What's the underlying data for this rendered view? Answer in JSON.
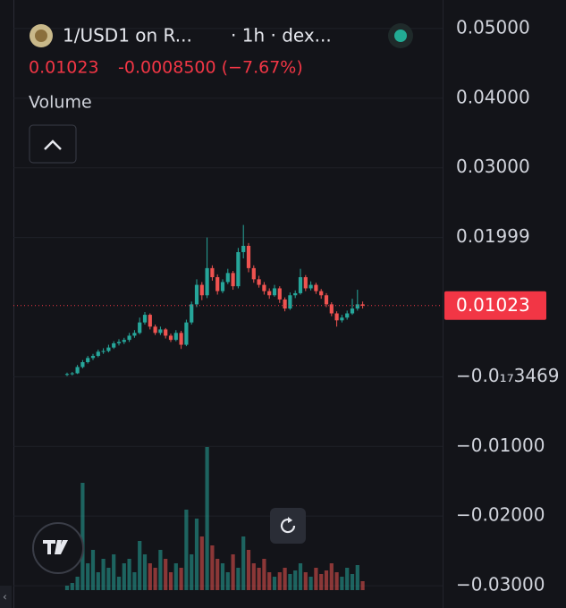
{
  "chart_data": {
    "type": "candlestick",
    "title": "1/USD1 on R...",
    "subtitle": "· 1h · dex...",
    "last_price": "0.01023",
    "change": "-0.0008500 (−7.67%)",
    "volume_label": "Volume",
    "current_price": 0.01023,
    "current_price_label": "0.01023",
    "up_color": "#26a69a",
    "down_color": "#ef5350",
    "ylim": [
      -0.0332,
      0.0541
    ],
    "yticks": [
      {
        "value": 0.05,
        "label": "0.05000"
      },
      {
        "value": 0.04,
        "label": "0.04000"
      },
      {
        "value": 0.03,
        "label": "0.03000"
      },
      {
        "value": 0.02,
        "label": "0.01999"
      },
      {
        "value": -3.469e-18,
        "label": "−0.0₁₇3469"
      },
      {
        "value": -0.01,
        "label": "−0.01000"
      },
      {
        "value": -0.02,
        "label": "−0.02000"
      },
      {
        "value": -0.03,
        "label": "−0.03000"
      }
    ],
    "grid": true,
    "ohlc": [
      [
        0.0003,
        0.0006,
        0.0001,
        0.0004
      ],
      [
        0.0004,
        0.0007,
        0.0002,
        0.0005
      ],
      [
        0.0005,
        0.0017,
        0.0004,
        0.0014
      ],
      [
        0.0014,
        0.0024,
        0.0012,
        0.0021
      ],
      [
        0.0021,
        0.003,
        0.0019,
        0.0027
      ],
      [
        0.0027,
        0.0033,
        0.0024,
        0.003
      ],
      [
        0.003,
        0.0039,
        0.0028,
        0.0036
      ],
      [
        0.0036,
        0.0041,
        0.0033,
        0.0037
      ],
      [
        0.0037,
        0.0046,
        0.0035,
        0.0042
      ],
      [
        0.0042,
        0.0051,
        0.004,
        0.0048
      ],
      [
        0.0048,
        0.0054,
        0.0045,
        0.005
      ],
      [
        0.005,
        0.0056,
        0.0047,
        0.0053
      ],
      [
        0.0053,
        0.0063,
        0.005,
        0.0059
      ],
      [
        0.0059,
        0.0067,
        0.0056,
        0.0063
      ],
      [
        0.0063,
        0.0085,
        0.0061,
        0.0078
      ],
      [
        0.0078,
        0.0093,
        0.0075,
        0.0089
      ],
      [
        0.0089,
        0.0091,
        0.0068,
        0.0072
      ],
      [
        0.0072,
        0.0075,
        0.006,
        0.0063
      ],
      [
        0.0063,
        0.0072,
        0.006,
        0.0068
      ],
      [
        0.0068,
        0.007,
        0.0055,
        0.0059
      ],
      [
        0.0059,
        0.0062,
        0.005,
        0.0053
      ],
      [
        0.0053,
        0.0067,
        0.0051,
        0.0063
      ],
      [
        0.0063,
        0.0066,
        0.004,
        0.0046
      ],
      [
        0.0046,
        0.0082,
        0.0044,
        0.0078
      ],
      [
        0.0078,
        0.0108,
        0.0075,
        0.0104
      ],
      [
        0.0104,
        0.014,
        0.01,
        0.0132
      ],
      [
        0.0132,
        0.0136,
        0.011,
        0.0117
      ],
      [
        0.0117,
        0.02,
        0.0113,
        0.0156
      ],
      [
        0.0156,
        0.016,
        0.0138,
        0.0143
      ],
      [
        0.0143,
        0.0147,
        0.0118,
        0.0123
      ],
      [
        0.0123,
        0.014,
        0.012,
        0.0136
      ],
      [
        0.0136,
        0.0155,
        0.0133,
        0.0149
      ],
      [
        0.0149,
        0.0152,
        0.0125,
        0.013
      ],
      [
        0.013,
        0.0185,
        0.0127,
        0.0179
      ],
      [
        0.0179,
        0.0218,
        0.017,
        0.0188
      ],
      [
        0.0188,
        0.0192,
        0.015,
        0.0156
      ],
      [
        0.0156,
        0.016,
        0.0135,
        0.014
      ],
      [
        0.014,
        0.0145,
        0.0128,
        0.0132
      ],
      [
        0.0132,
        0.0136,
        0.0118,
        0.0123
      ],
      [
        0.0123,
        0.0127,
        0.0112,
        0.0117
      ],
      [
        0.0117,
        0.0132,
        0.0115,
        0.0127
      ],
      [
        0.0127,
        0.013,
        0.0106,
        0.0111
      ],
      [
        0.0111,
        0.0114,
        0.0094,
        0.0098
      ],
      [
        0.0098,
        0.0121,
        0.0096,
        0.0117
      ],
      [
        0.0117,
        0.0124,
        0.0113,
        0.012
      ],
      [
        0.012,
        0.0155,
        0.0118,
        0.0143
      ],
      [
        0.0143,
        0.0146,
        0.0123,
        0.0127
      ],
      [
        0.0127,
        0.0137,
        0.0124,
        0.0132
      ],
      [
        0.0132,
        0.0135,
        0.0119,
        0.0123
      ],
      [
        0.0123,
        0.0126,
        0.0112,
        0.0117
      ],
      [
        0.0117,
        0.012,
        0.01,
        0.0104
      ],
      [
        0.0104,
        0.0107,
        0.0087,
        0.0091
      ],
      [
        0.0091,
        0.0094,
        0.0072,
        0.0081
      ],
      [
        0.0081,
        0.0089,
        0.0078,
        0.0085
      ],
      [
        0.0085,
        0.0095,
        0.0082,
        0.0091
      ],
      [
        0.0091,
        0.0112,
        0.0089,
        0.0098
      ],
      [
        0.0098,
        0.0125,
        0.0095,
        0.0104
      ],
      [
        0.0104,
        0.0108,
        0.0098,
        0.0102
      ]
    ],
    "volume": [
      5,
      8,
      15,
      120,
      30,
      45,
      20,
      35,
      25,
      40,
      15,
      30,
      35,
      20,
      55,
      40,
      30,
      25,
      45,
      35,
      20,
      30,
      25,
      90,
      40,
      80,
      60,
      160,
      50,
      35,
      30,
      20,
      40,
      25,
      60,
      45,
      30,
      25,
      35,
      20,
      15,
      20,
      25,
      18,
      22,
      30,
      20,
      15,
      25,
      18,
      22,
      30,
      20,
      15,
      25,
      18,
      28,
      10
    ]
  }
}
